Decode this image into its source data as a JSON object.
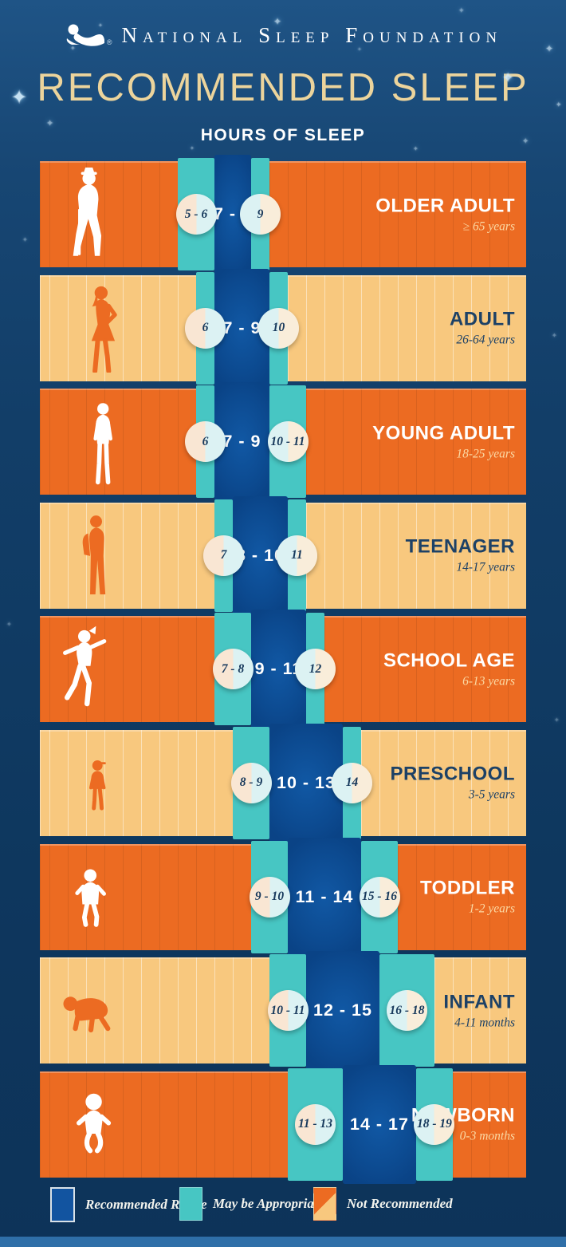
{
  "header": {
    "brand": "National Sleep Foundation",
    "registered": "®",
    "title": "RECOMMENDED SLEEP",
    "subtitle": "HOURS OF SLEEP"
  },
  "legend": {
    "items": [
      {
        "label": "Recommended Range",
        "type": "recommended"
      },
      {
        "label": "May be Appropriate",
        "type": "may-be-appropriate"
      },
      {
        "label": "Not Recommended",
        "type": "not-recommended"
      }
    ]
  },
  "colors": {
    "orange": "#ec6b22",
    "peach": "#f8c87e",
    "teal": "#47c6c3",
    "recommended_blue": "#0d57a0",
    "background_navy": "#123e68",
    "title_gold": "#ecd49c",
    "label_navy": "#1d4166",
    "circle_fill": "#ddf2f2"
  },
  "chart_data": {
    "type": "bar",
    "subtype": "horizontal-range-bands",
    "title": "RECOMMENDED SLEEP",
    "xlabel": "HOURS OF SLEEP",
    "x_unit": "hours",
    "x_domain": [
      0,
      24
    ],
    "legend_entries": [
      "Recommended Range",
      "May be Appropriate",
      "Not Recommended"
    ],
    "rows": [
      {
        "group": "OLDER ADULT",
        "age": "≥ 65 years",
        "icon": "older-adult",
        "variant": "orange",
        "may_low": {
          "label": "5 - 6",
          "from": 5,
          "to": 7
        },
        "recommended": {
          "label": "7 - 8",
          "from": 7,
          "to": 9
        },
        "may_high": {
          "label": "9",
          "from": 9,
          "to": 10
        }
      },
      {
        "group": "ADULT",
        "age": "26-64 years",
        "icon": "adult",
        "variant": "peach",
        "may_low": {
          "label": "6",
          "from": 6,
          "to": 7
        },
        "recommended": {
          "label": "7 - 9",
          "from": 7,
          "to": 10
        },
        "may_high": {
          "label": "10",
          "from": 10,
          "to": 11
        }
      },
      {
        "group": "YOUNG ADULT",
        "age": "18-25 years",
        "icon": "young-adult",
        "variant": "orange",
        "may_low": {
          "label": "6",
          "from": 6,
          "to": 7
        },
        "recommended": {
          "label": "7 - 9",
          "from": 7,
          "to": 10
        },
        "may_high": {
          "label": "10 - 11",
          "from": 10,
          "to": 12
        }
      },
      {
        "group": "TEENAGER",
        "age": "14-17 years",
        "icon": "teenager",
        "variant": "peach",
        "may_low": {
          "label": "7",
          "from": 7,
          "to": 8
        },
        "recommended": {
          "label": "8 - 10",
          "from": 8,
          "to": 11
        },
        "may_high": {
          "label": "11",
          "from": 11,
          "to": 12
        }
      },
      {
        "group": "SCHOOL AGE",
        "age": "6-13 years",
        "icon": "school-age",
        "variant": "orange",
        "may_low": {
          "label": "7 - 8",
          "from": 7,
          "to": 9
        },
        "recommended": {
          "label": "9 - 11",
          "from": 9,
          "to": 12
        },
        "may_high": {
          "label": "12",
          "from": 12,
          "to": 13
        }
      },
      {
        "group": "PRESCHOOL",
        "age": "3-5 years",
        "icon": "preschool",
        "variant": "peach",
        "may_low": {
          "label": "8 - 9",
          "from": 8,
          "to": 10
        },
        "recommended": {
          "label": "10 - 13",
          "from": 10,
          "to": 14
        },
        "may_high": {
          "label": "14",
          "from": 14,
          "to": 15
        }
      },
      {
        "group": "TODDLER",
        "age": "1-2 years",
        "icon": "toddler",
        "variant": "orange",
        "may_low": {
          "label": "9 - 10",
          "from": 9,
          "to": 11
        },
        "recommended": {
          "label": "11 - 14",
          "from": 11,
          "to": 15
        },
        "may_high": {
          "label": "15 - 16",
          "from": 15,
          "to": 17
        }
      },
      {
        "group": "INFANT",
        "age": "4-11 months",
        "icon": "infant",
        "variant": "peach",
        "may_low": {
          "label": "10 - 11",
          "from": 10,
          "to": 12
        },
        "recommended": {
          "label": "12 - 15",
          "from": 12,
          "to": 16
        },
        "may_high": {
          "label": "16 - 18",
          "from": 16,
          "to": 19
        }
      },
      {
        "group": "NEWBORN",
        "age": "0-3 months",
        "icon": "newborn",
        "variant": "orange",
        "may_low": {
          "label": "11 - 13",
          "from": 11,
          "to": 14
        },
        "recommended": {
          "label": "14 - 17",
          "from": 14,
          "to": 18
        },
        "may_high": {
          "label": "18 - 19",
          "from": 18,
          "to": 20
        }
      }
    ]
  }
}
